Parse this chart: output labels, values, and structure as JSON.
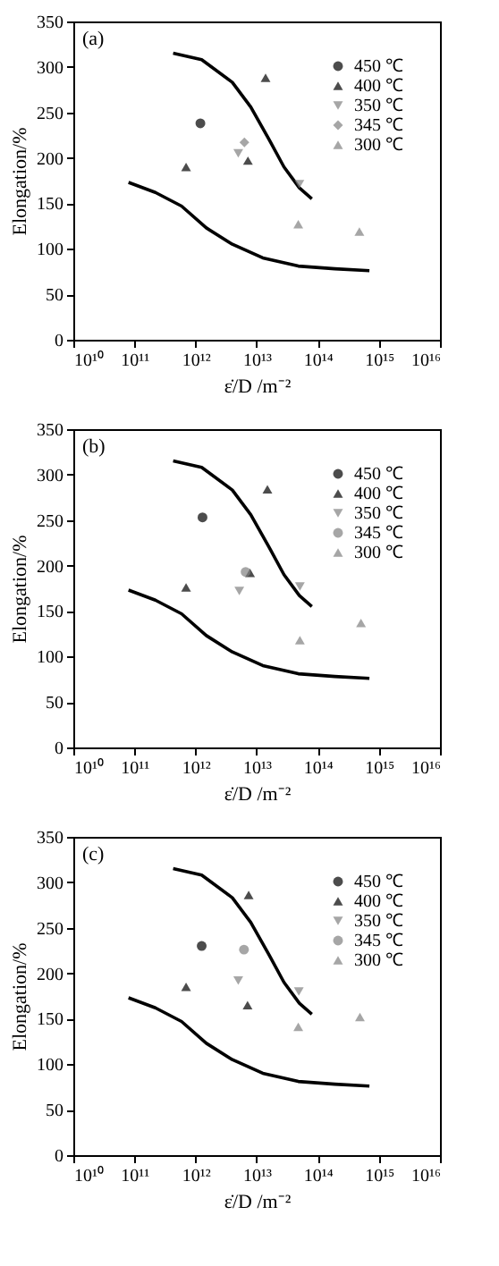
{
  "chart_data": [
    {
      "type": "scatter",
      "annotations": [
        "(a)"
      ],
      "xlabel": "ε̇/D /m⁻²",
      "ylabel": "Elongation/%",
      "log": "x",
      "legend": "top right",
      "grid": false,
      "xlim": [
        10000000000.0,
        1e+16
      ],
      "xticks": [
        {
          "value": 10000000000.0,
          "label": "10¹⁰"
        },
        {
          "value": 100000000000.0,
          "label": "10¹¹"
        },
        {
          "value": 1000000000000.0,
          "label": "10¹²"
        },
        {
          "value": 10000000000000.0,
          "label": "10¹³"
        },
        {
          "value": 100000000000000.0,
          "label": "10¹⁴"
        },
        {
          "value": 1000000000000000.0,
          "label": "10¹⁵"
        },
        {
          "value": 1e+16,
          "label": "10¹⁶"
        }
      ],
      "ylim": [
        0,
        350
      ],
      "yticks": [
        0,
        50,
        100,
        150,
        200,
        250,
        300,
        350
      ],
      "series": [
        {
          "name": "450 ℃",
          "color": "#000000",
          "marker": "circle",
          "x": [
            1200000000000.0
          ],
          "values": [
            238
          ]
        },
        {
          "name": "400 ℃",
          "color": "#000000",
          "marker": "triangle",
          "x": [
            700000000000.0,
            7200000000000.0,
            14000000000000.0
          ],
          "values": [
            190,
            197,
            288
          ]
        },
        {
          "name": "350 ℃",
          "color": "#808080",
          "marker": "triangle-down",
          "x": [
            5000000000000.0,
            50000000000000.0
          ],
          "values": [
            205,
            171
          ]
        },
        {
          "name": "345 ℃",
          "color": "#808080",
          "marker": "diamond",
          "x": [
            6300000000000.0
          ],
          "values": [
            217
          ]
        },
        {
          "name": "300 ℃",
          "color": "#808080",
          "marker": "triangle",
          "x": [
            48000000000000.0,
            480000000000000.0
          ],
          "values": [
            127,
            119
          ]
        },
        {
          "type": "line",
          "color": "#000000",
          "x": [
            430000000000.0,
            1260000000000.0,
            4000000000000.0,
            8000000000000.0,
            16000000000000.0,
            28000000000000.0,
            50000000000000.0,
            80000000000000.0
          ],
          "values": [
            315,
            308,
            283,
            256,
            220,
            190,
            167,
            155
          ]
        },
        {
          "type": "line",
          "color": "#000000",
          "x": [
            80000000000.0,
            220000000000.0,
            590000000000.0,
            1500000000000.0,
            4000000000000.0,
            12600000000000.0,
            48000000000000.0,
            190000000000000.0,
            700000000000000.0
          ],
          "values": [
            173,
            162,
            147,
            123,
            105,
            90,
            81,
            78,
            76
          ]
        }
      ]
    },
    {
      "type": "scatter",
      "annotations": [
        "(b)"
      ],
      "xlabel": "ε̇/D /m⁻²",
      "ylabel": "Elongation/%",
      "log": "x",
      "legend": "top right",
      "grid": false,
      "xlim": [
        10000000000.0,
        1e+16
      ],
      "xticks": [
        {
          "value": 10000000000.0,
          "label": "10¹⁰"
        },
        {
          "value": 100000000000.0,
          "label": "10¹¹"
        },
        {
          "value": 1000000000000.0,
          "label": "10¹²"
        },
        {
          "value": 10000000000000.0,
          "label": "10¹³"
        },
        {
          "value": 100000000000000.0,
          "label": "10¹⁴"
        },
        {
          "value": 1000000000000000.0,
          "label": "10¹⁵"
        },
        {
          "value": 1e+16,
          "label": "10¹⁶"
        }
      ],
      "ylim": [
        0,
        350
      ],
      "yticks": [
        0,
        50,
        100,
        150,
        200,
        250,
        300,
        350
      ],
      "series": [
        {
          "name": "450 ℃",
          "color": "#000000",
          "marker": "circle",
          "x": [
            1300000000000.0
          ],
          "values": [
            253
          ]
        },
        {
          "name": "400 ℃",
          "color": "#000000",
          "marker": "triangle",
          "x": [
            700000000000.0,
            7800000000000.0,
            15000000000000.0
          ],
          "values": [
            176,
            192,
            284
          ]
        },
        {
          "name": "350 ℃",
          "color": "#808080",
          "marker": "triangle-down",
          "x": [
            5200000000000.0,
            51000000000000.0
          ],
          "values": [
            172,
            177
          ]
        },
        {
          "name": "345 ℃",
          "color": "#808080",
          "marker": "circle",
          "x": [
            6600000000000.0
          ],
          "values": [
            193
          ]
        },
        {
          "name": "300 ℃",
          "color": "#808080",
          "marker": "triangle",
          "x": [
            51000000000000.0,
            510000000000000.0
          ],
          "values": [
            118,
            137
          ]
        },
        {
          "type": "line",
          "color": "#000000",
          "x": [
            430000000000.0,
            1260000000000.0,
            4000000000000.0,
            8000000000000.0,
            16000000000000.0,
            28000000000000.0,
            50000000000000.0,
            80000000000000.0
          ],
          "values": [
            315,
            308,
            283,
            256,
            220,
            190,
            167,
            155
          ]
        },
        {
          "type": "line",
          "color": "#000000",
          "x": [
            80000000000.0,
            220000000000.0,
            590000000000.0,
            1500000000000.0,
            4000000000000.0,
            12600000000000.0,
            48000000000000.0,
            190000000000000.0,
            700000000000000.0
          ],
          "values": [
            173,
            162,
            147,
            123,
            105,
            90,
            81,
            78,
            76
          ]
        }
      ]
    },
    {
      "type": "scatter",
      "annotations": [
        "(c)"
      ],
      "xlabel": "ε̇/D /m⁻²",
      "ylabel": "Elongation/%",
      "log": "x",
      "legend": "top right",
      "grid": false,
      "xlim": [
        10000000000.0,
        1e+16
      ],
      "xticks": [
        {
          "value": 10000000000.0,
          "label": "10¹⁰"
        },
        {
          "value": 100000000000.0,
          "label": "10¹¹"
        },
        {
          "value": 1000000000000.0,
          "label": "10¹²"
        },
        {
          "value": 10000000000000.0,
          "label": "10¹³"
        },
        {
          "value": 100000000000000.0,
          "label": "10¹⁴"
        },
        {
          "value": 1000000000000000.0,
          "label": "10¹⁵"
        },
        {
          "value": 1e+16,
          "label": "10¹⁶"
        }
      ],
      "ylim": [
        0,
        350
      ],
      "yticks": [
        0,
        50,
        100,
        150,
        200,
        250,
        300,
        350
      ],
      "series": [
        {
          "name": "450 ℃",
          "color": "#000000",
          "marker": "circle",
          "x": [
            1260000000000.0
          ],
          "values": [
            230
          ]
        },
        {
          "name": "400 ℃",
          "color": "#000000",
          "marker": "triangle",
          "x": [
            700000000000.0,
            7400000000000.0,
            7100000000000.0
          ],
          "values": [
            185,
            286,
            165
          ]
        },
        {
          "name": "350 ℃",
          "color": "#808080",
          "marker": "triangle-down",
          "x": [
            5000000000000.0,
            49000000000000.0
          ],
          "values": [
            192,
            180
          ]
        },
        {
          "name": "345 ℃",
          "color": "#808080",
          "marker": "circle",
          "x": [
            6200000000000.0
          ],
          "values": [
            226
          ]
        },
        {
          "name": "300 ℃",
          "color": "#808080",
          "marker": "triangle",
          "x": [
            48000000000000.0,
            490000000000000.0
          ],
          "values": [
            141,
            152
          ]
        },
        {
          "type": "line",
          "color": "#000000",
          "x": [
            430000000000.0,
            1260000000000.0,
            4000000000000.0,
            8000000000000.0,
            16000000000000.0,
            28000000000000.0,
            50000000000000.0,
            80000000000000.0
          ],
          "values": [
            315,
            308,
            283,
            256,
            220,
            190,
            167,
            155
          ]
        },
        {
          "type": "line",
          "color": "#000000",
          "x": [
            80000000000.0,
            220000000000.0,
            590000000000.0,
            1500000000000.0,
            4000000000000.0,
            12600000000000.0,
            48000000000000.0,
            190000000000000.0,
            700000000000000.0
          ],
          "values": [
            173,
            162,
            147,
            123,
            105,
            90,
            81,
            78,
            76
          ]
        }
      ]
    }
  ]
}
